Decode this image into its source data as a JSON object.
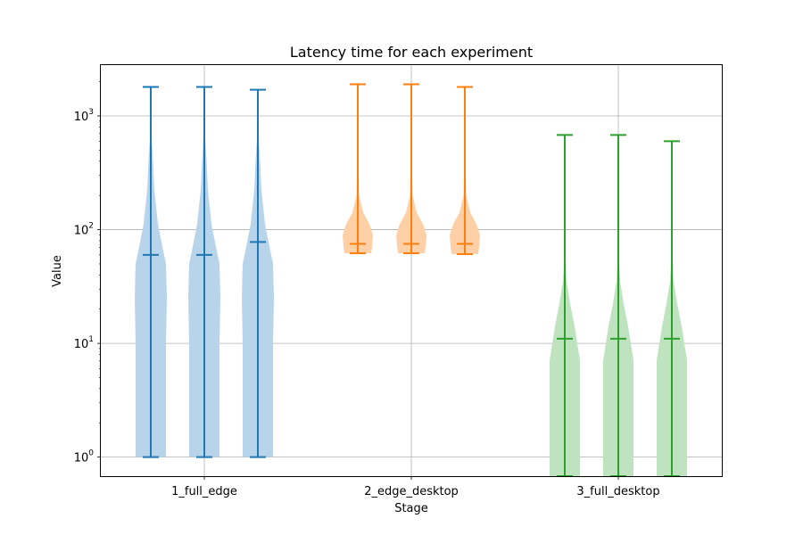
{
  "chart_data": {
    "type": "violin",
    "title": "Latency time for each experiment",
    "xlabel": "Stage",
    "ylabel": "Value",
    "yscale": "log",
    "ylim": [
      0.68,
      2800
    ],
    "yticks": [
      {
        "value": 1,
        "base": "10",
        "exp": "0"
      },
      {
        "value": 10,
        "base": "10",
        "exp": "1"
      },
      {
        "value": 100,
        "base": "10",
        "exp": "2"
      },
      {
        "value": 1000,
        "base": "10",
        "exp": "3"
      }
    ],
    "grid": true,
    "categories": [
      "1_full_edge",
      "2_edge_desktop",
      "3_full_desktop"
    ],
    "groups": [
      {
        "category": "1_full_edge",
        "color": "#1f77b4",
        "fill": "#b7d4ea",
        "violins": [
          {
            "min": 1,
            "median": 60,
            "max": 1800
          },
          {
            "min": 1,
            "median": 60,
            "max": 1800
          },
          {
            "min": 1,
            "median": 78,
            "max": 1700
          }
        ]
      },
      {
        "category": "2_edge_desktop",
        "color": "#ff7f0e",
        "fill": "#ffd0a6",
        "violins": [
          {
            "min": 62,
            "median": 75,
            "max": 1900
          },
          {
            "min": 62,
            "median": 75,
            "max": 1900
          },
          {
            "min": 61,
            "median": 75,
            "max": 1800
          }
        ]
      },
      {
        "category": "3_full_desktop",
        "color": "#2ca02c",
        "fill": "#bfe3bf",
        "violins": [
          {
            "min": 0.68,
            "median": 11,
            "max": 680
          },
          {
            "min": 0.68,
            "median": 11,
            "max": 680
          },
          {
            "min": 0.68,
            "median": 11,
            "max": 600
          }
        ]
      }
    ]
  }
}
